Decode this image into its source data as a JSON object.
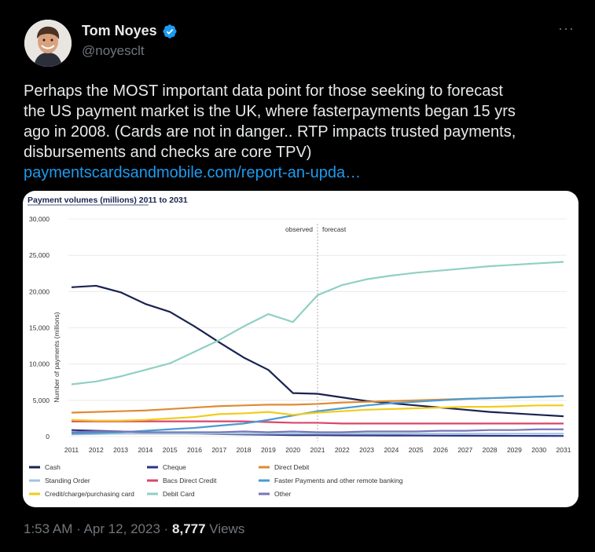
{
  "author": {
    "name": "Tom Noyes",
    "handle": "@noyesclt",
    "verified_color": "#1d9bf0"
  },
  "tweet": {
    "lines": [
      "Perhaps the MOST important data point for those seeking to forecast",
      "the US payment market is the UK, where fasterpayments began 15 yrs",
      "ago in 2008.  (Cards are not in danger.. RTP impacts trusted payments,",
      "disbursements and checks are core TPV)"
    ],
    "link_text": "paymentscardsandmobile.com/report-an-upda…",
    "link_color": "#1d9bf0"
  },
  "meta": {
    "time": "1:53 AM · Apr 12, 2023 · ",
    "views_count": "8,777",
    "views_label": " Views"
  },
  "icons": {
    "more": "more-dots-icon",
    "verified": "verified-badge-icon"
  },
  "chart_data": {
    "type": "line",
    "title": "Payment volumes (millions) 2011 to 2031",
    "ylabel": "Number of payments (millions)",
    "xlabel": "",
    "ylim": [
      0,
      30000
    ],
    "yticks": [
      "0",
      "5,000",
      "10,000",
      "15,000",
      "20,000",
      "25,000",
      "30,000"
    ],
    "ytick_values": [
      0,
      5000,
      10000,
      15000,
      20000,
      25000,
      30000
    ],
    "categories": [
      "2011",
      "2012",
      "2013",
      "2014",
      "2015",
      "2016",
      "2017",
      "2018",
      "2019",
      "2020",
      "2021",
      "2022",
      "2023",
      "2024",
      "2025",
      "2026",
      "2027",
      "2028",
      "2029",
      "2030",
      "2031"
    ],
    "annotations": {
      "observed": "observed",
      "forecast": "forecast"
    },
    "legend_placement": "bottom",
    "series": [
      {
        "name": "Cash",
        "color": "#1a2350",
        "values": [
          20600,
          20800,
          19900,
          18300,
          17200,
          15200,
          13000,
          10900,
          9200,
          6000,
          5900,
          5400,
          4900,
          4600,
          4300,
          4000,
          3700,
          3400,
          3200,
          3000,
          2800
        ]
      },
      {
        "name": "Cheque",
        "color": "#2e3585",
        "values": [
          900,
          800,
          700,
          600,
          500,
          400,
          350,
          300,
          250,
          200,
          200,
          180,
          160,
          150,
          140,
          130,
          120,
          110,
          100,
          95,
          90
        ]
      },
      {
        "name": "Direct Debit",
        "color": "#e08a34",
        "values": [
          3300,
          3400,
          3500,
          3600,
          3800,
          4000,
          4200,
          4300,
          4400,
          4400,
          4500,
          4700,
          4800,
          4900,
          5000,
          5100,
          5200,
          5300,
          5400,
          5500,
          5600
        ]
      },
      {
        "name": "Standing Order",
        "color": "#9ec4dd",
        "values": [
          300,
          350,
          400,
          400,
          400,
          400,
          400,
          400,
          400,
          400,
          400,
          400,
          400,
          400,
          400,
          400,
          400,
          400,
          400,
          400,
          400
        ]
      },
      {
        "name": "Bacs Direct Credit",
        "color": "#d9476a",
        "values": [
          2100,
          2100,
          2100,
          2100,
          2100,
          2100,
          2100,
          2100,
          2000,
          1900,
          1900,
          1800,
          1800,
          1800,
          1800,
          1800,
          1800,
          1800,
          1800,
          1800,
          1800
        ]
      },
      {
        "name": "Faster Payments and other remote banking",
        "color": "#4a9bd1",
        "values": [
          400,
          500,
          600,
          800,
          1000,
          1200,
          1500,
          1800,
          2300,
          2900,
          3500,
          3900,
          4300,
          4600,
          4800,
          5000,
          5200,
          5300,
          5400,
          5500,
          5600
        ]
      },
      {
        "name": "Credit/charge/purchasing card",
        "color": "#f2cc1a",
        "values": [
          2300,
          2200,
          2200,
          2300,
          2500,
          2700,
          3100,
          3200,
          3400,
          3000,
          3300,
          3500,
          3700,
          3800,
          3900,
          4000,
          4100,
          4100,
          4200,
          4300,
          4300
        ]
      },
      {
        "name": "Debit Card",
        "color": "#8fd0c2",
        "values": [
          7200,
          7600,
          8300,
          9200,
          10100,
          11700,
          13300,
          15200,
          16900,
          15800,
          19500,
          20900,
          21700,
          22200,
          22600,
          22900,
          23200,
          23500,
          23700,
          23900,
          24100
        ]
      },
      {
        "name": "Other",
        "color": "#7a75b8",
        "values": [
          600,
          700,
          700,
          600,
          600,
          600,
          600,
          700,
          600,
          700,
          600,
          600,
          700,
          700,
          700,
          800,
          800,
          900,
          900,
          1000,
          1000
        ]
      }
    ]
  }
}
